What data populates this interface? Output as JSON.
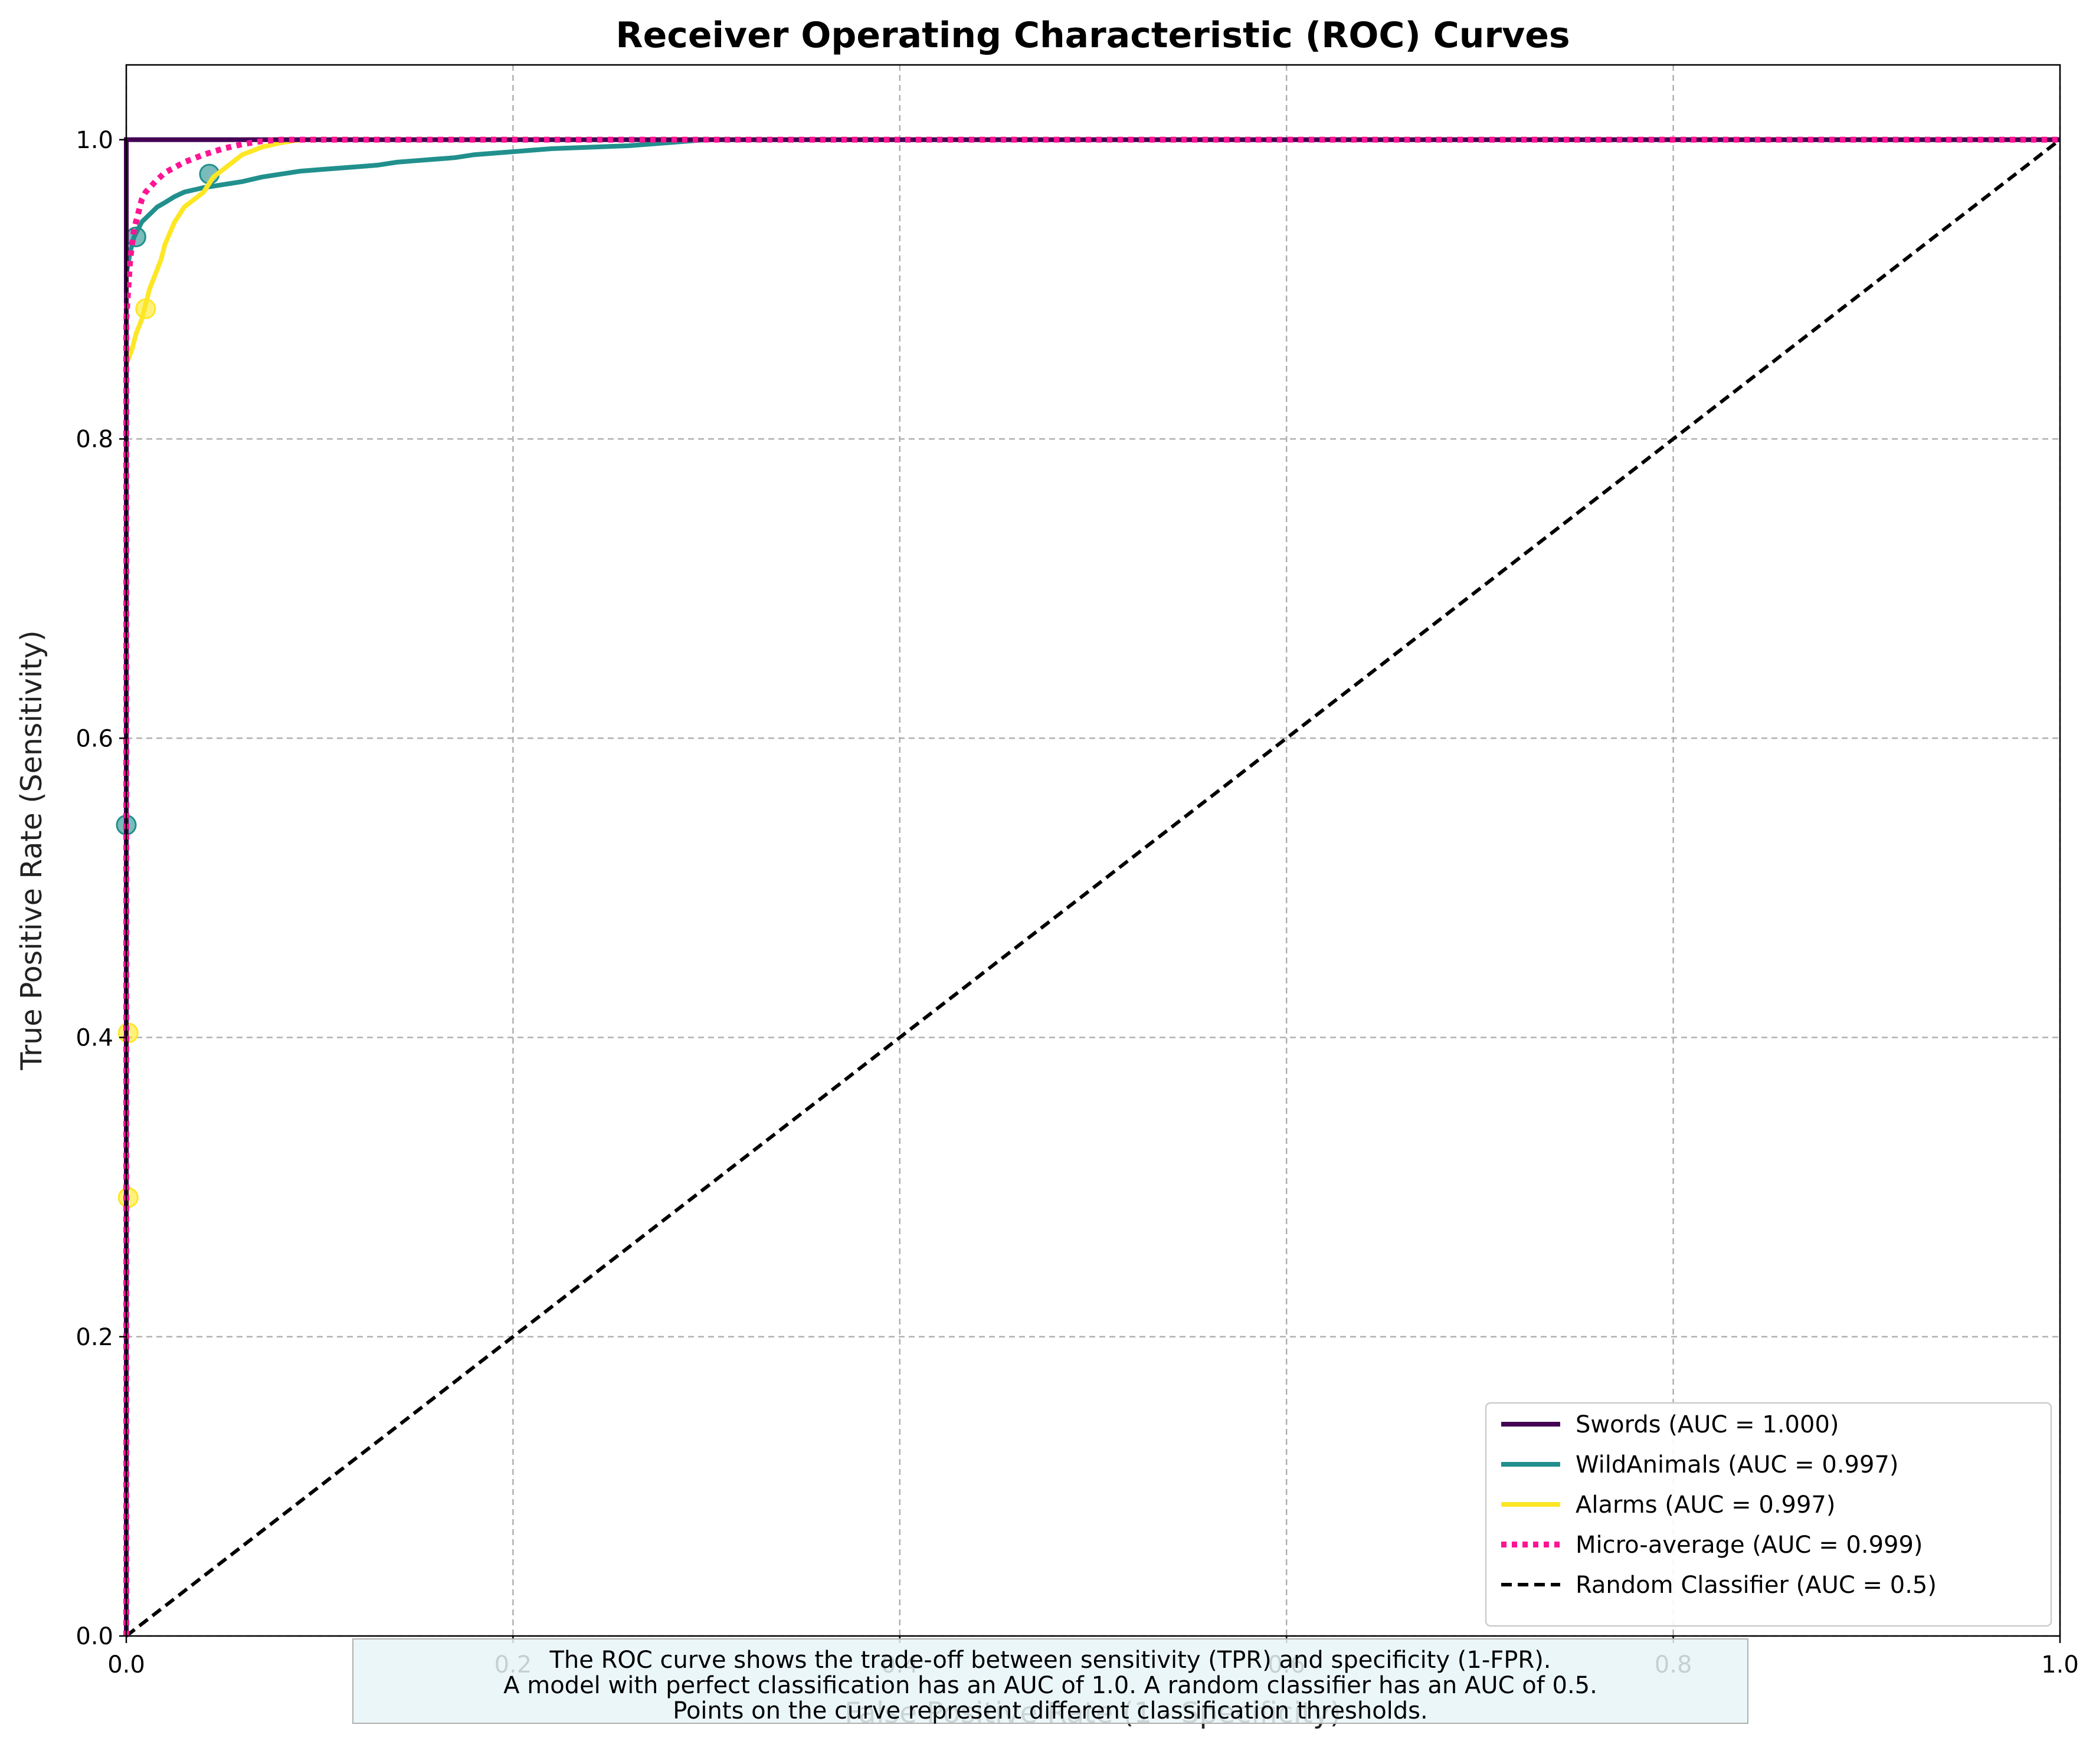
{
  "chart_data": {
    "type": "line",
    "title": "Receiver Operating Characteristic (ROC) Curves",
    "xlabel": "False Positive Rate (1 - Specificity)",
    "ylabel": "True Positive Rate (Sensitivity)",
    "xlim": [
      0.0,
      1.0
    ],
    "ylim": [
      0.0,
      1.05
    ],
    "xticks": [
      "0.0",
      "0.2",
      "0.4",
      "0.6",
      "0.8",
      "1.0"
    ],
    "yticks": [
      "0.0",
      "0.2",
      "0.4",
      "0.6",
      "0.8",
      "1.0"
    ],
    "grid": true,
    "legend_position": "lower-right",
    "series": [
      {
        "name": "Swords (AUC = 1.000)",
        "color": "#440154",
        "style": "solid",
        "x": [
          0.0,
          0.0,
          0.0,
          0.08,
          1.0
        ],
        "y": [
          0.0,
          0.9,
          1.0,
          1.0,
          1.0
        ],
        "markers": []
      },
      {
        "name": "WildAnimals (AUC = 0.997)",
        "color": "#21908d",
        "style": "solid",
        "x": [
          0.0,
          0.0,
          0.0,
          0.002,
          0.004,
          0.006,
          0.008,
          0.012,
          0.016,
          0.02,
          0.025,
          0.03,
          0.04,
          0.05,
          0.06,
          0.07,
          0.08,
          0.09,
          0.1,
          0.11,
          0.12,
          0.13,
          0.14,
          0.15,
          0.16,
          0.17,
          0.18,
          0.2,
          0.22,
          0.24,
          0.26,
          0.28,
          0.3,
          1.0
        ],
        "y": [
          0.0,
          0.54,
          0.91,
          0.925,
          0.935,
          0.94,
          0.945,
          0.95,
          0.955,
          0.958,
          0.962,
          0.965,
          0.968,
          0.97,
          0.972,
          0.975,
          0.977,
          0.979,
          0.98,
          0.981,
          0.982,
          0.983,
          0.985,
          0.986,
          0.987,
          0.988,
          0.99,
          0.992,
          0.994,
          0.995,
          0.996,
          0.998,
          1.0,
          1.0
        ],
        "markers": [
          [
            0.0,
            0.542
          ],
          [
            0.005,
            0.935
          ],
          [
            0.043,
            0.977
          ]
        ]
      },
      {
        "name": "Alarms (AUC = 0.997)",
        "color": "#fde725",
        "style": "solid",
        "x": [
          0.0,
          0.0,
          0.0,
          0.0,
          0.003,
          0.005,
          0.008,
          0.01,
          0.012,
          0.015,
          0.018,
          0.02,
          0.025,
          0.03,
          0.035,
          0.04,
          0.045,
          0.05,
          0.06,
          0.07,
          0.08,
          0.09,
          1.0
        ],
        "y": [
          0.0,
          0.29,
          0.4,
          0.85,
          0.86,
          0.87,
          0.88,
          0.89,
          0.9,
          0.91,
          0.92,
          0.93,
          0.945,
          0.955,
          0.96,
          0.965,
          0.975,
          0.98,
          0.99,
          0.995,
          0.998,
          1.0,
          1.0
        ],
        "markers": [
          [
            0.001,
            0.293
          ],
          [
            0.001,
            0.403
          ],
          [
            0.01,
            0.887
          ]
        ]
      },
      {
        "name": "Micro-average (AUC = 0.999)",
        "color": "#ff1493",
        "style": "dotted",
        "x": [
          0.0,
          0.0,
          0.002,
          0.004,
          0.006,
          0.008,
          0.01,
          0.015,
          0.02,
          0.03,
          0.04,
          0.05,
          0.06,
          0.07,
          0.08,
          1.0
        ],
        "y": [
          0.0,
          0.88,
          0.92,
          0.94,
          0.95,
          0.96,
          0.965,
          0.972,
          0.978,
          0.985,
          0.99,
          0.994,
          0.997,
          0.999,
          1.0,
          1.0
        ],
        "markers": []
      },
      {
        "name": "Random Classifier (AUC = 0.5)",
        "color": "#000000",
        "style": "dashed",
        "x": [
          0.0,
          1.0
        ],
        "y": [
          0.0,
          1.0
        ],
        "markers": []
      }
    ],
    "annotation": [
      "The ROC curve shows the trade-off between sensitivity (TPR) and specificity (1-FPR).",
      "A model with perfect classification has an AUC of 1.0. A random classifier has an AUC of 0.5.",
      "Points on the curve represent different classification thresholds."
    ]
  }
}
